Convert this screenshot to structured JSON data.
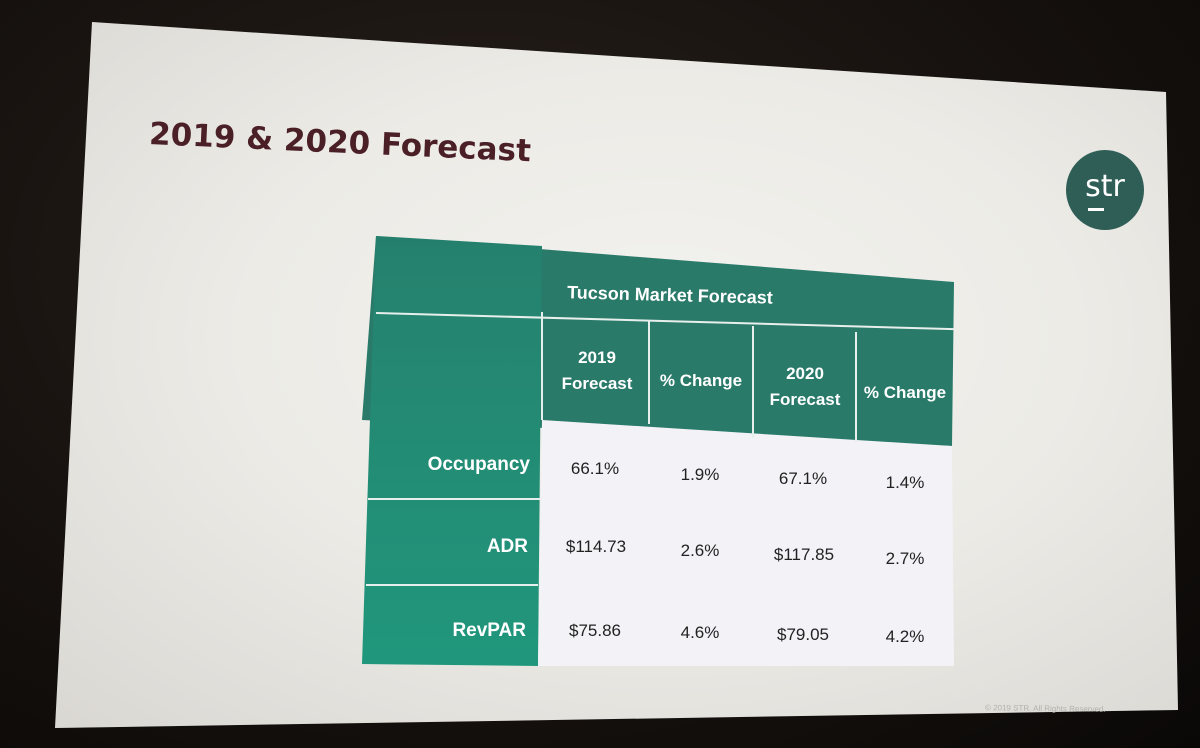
{
  "slide": {
    "title": "2019 & 2020 Forecast",
    "logo_text": "str",
    "footer": "© 2019 STR. All Rights Reserved."
  },
  "table": {
    "title": "Tucson Market Forecast",
    "columns": [
      "2019 Forecast",
      "% Change",
      "2020 Forecast",
      "% Change"
    ],
    "rows": [
      {
        "label": "Occupancy",
        "values": [
          "66.1%",
          "1.9%",
          "67.1%",
          "1.4%"
        ]
      },
      {
        "label": "ADR",
        "values": [
          "$114.73",
          "2.6%",
          "$117.85",
          "2.7%"
        ]
      },
      {
        "label": "RevPAR",
        "values": [
          "$75.86",
          "4.6%",
          "$79.05",
          "4.2%"
        ]
      }
    ]
  },
  "colors": {
    "title": "#4a1f26",
    "teal_header": "#2a7a6a",
    "teal_side": "#1f9b7f",
    "logo": "#2f5e57"
  }
}
